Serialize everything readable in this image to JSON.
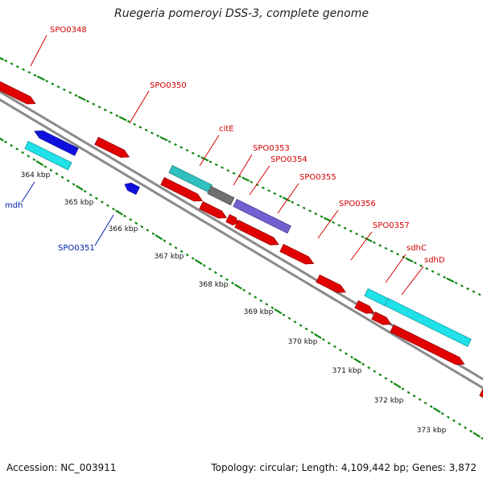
{
  "title": "Ruegeria pomeroyi DSS-3, complete genome",
  "accession": "Accession: NC_003911",
  "summary": "Topology: circular; Length: 4,109,442 bp; Genes: 3,872",
  "colors": {
    "backbone": "#8a8a8a",
    "forward_gene": "#e00000",
    "reverse_gene": "#1010dd",
    "cds_cyan": "#20e0e8",
    "cds_teal": "#30c0c0",
    "cds_gray": "#707070",
    "cds_purple": "#7060d0",
    "tick_green": "#118811",
    "label_red": "#d40000",
    "label_blue": "#0022aa"
  },
  "scale_labels": [
    "364 kbp",
    "365 kbp",
    "366 kbp",
    "367 kbp",
    "368 kbp",
    "369 kbp",
    "370 kbp",
    "371 kbp",
    "372 kbp",
    "373 kbp"
  ],
  "gene_labels": {
    "SPO0348": "SPO0348",
    "SPO0350": "SPO0350",
    "citE": "citE",
    "SPO0353": "SPO0353",
    "SPO0354": "SPO0354",
    "SPO0355": "SPO0355",
    "SPO0356": "SPO0356",
    "SPO0357": "SPO0357",
    "sdhC": "sdhC",
    "sdhD": "sdhD",
    "mdh": "mdh",
    "SPO0351": "SPO0351"
  }
}
